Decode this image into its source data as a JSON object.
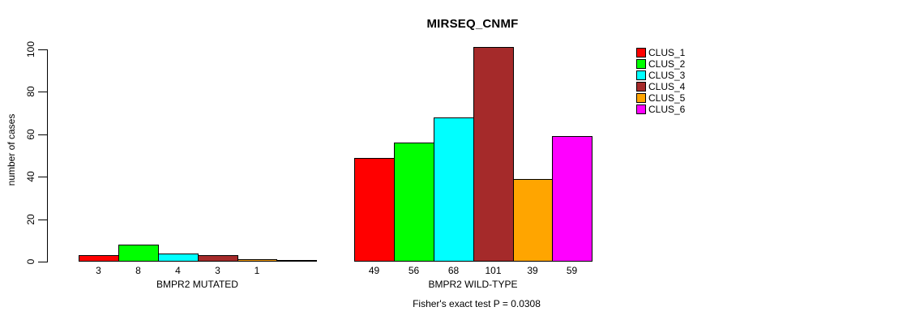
{
  "chart_data": {
    "type": "bar",
    "title": "MIRSEQ_CNMF",
    "ylabel": "number of cases",
    "ylim": [
      0,
      100
    ],
    "yticks": [
      0,
      20,
      40,
      60,
      80,
      100
    ],
    "grid": false,
    "legend_position": "right",
    "series_names": [
      "CLUS_1",
      "CLUS_2",
      "CLUS_3",
      "CLUS_4",
      "CLUS_5",
      "CLUS_6"
    ],
    "series_colors": [
      "#FF0000",
      "#00FF00",
      "#00FFFF",
      "#A52A2A",
      "#FFA500",
      "#FF00FF"
    ],
    "groups": [
      {
        "label": "BMPR2 MUTATED",
        "values": [
          3,
          8,
          4,
          3,
          1,
          0
        ],
        "bar_labels": [
          "3",
          "8",
          "4",
          "3",
          "1",
          ""
        ]
      },
      {
        "label": "BMPR2 WILD-TYPE",
        "values": [
          49,
          56,
          68,
          101,
          39,
          59
        ],
        "bar_labels": [
          "49",
          "56",
          "68",
          "101",
          "39",
          "59"
        ]
      }
    ],
    "annotation": "Fisher's exact test P = 0.0308"
  }
}
